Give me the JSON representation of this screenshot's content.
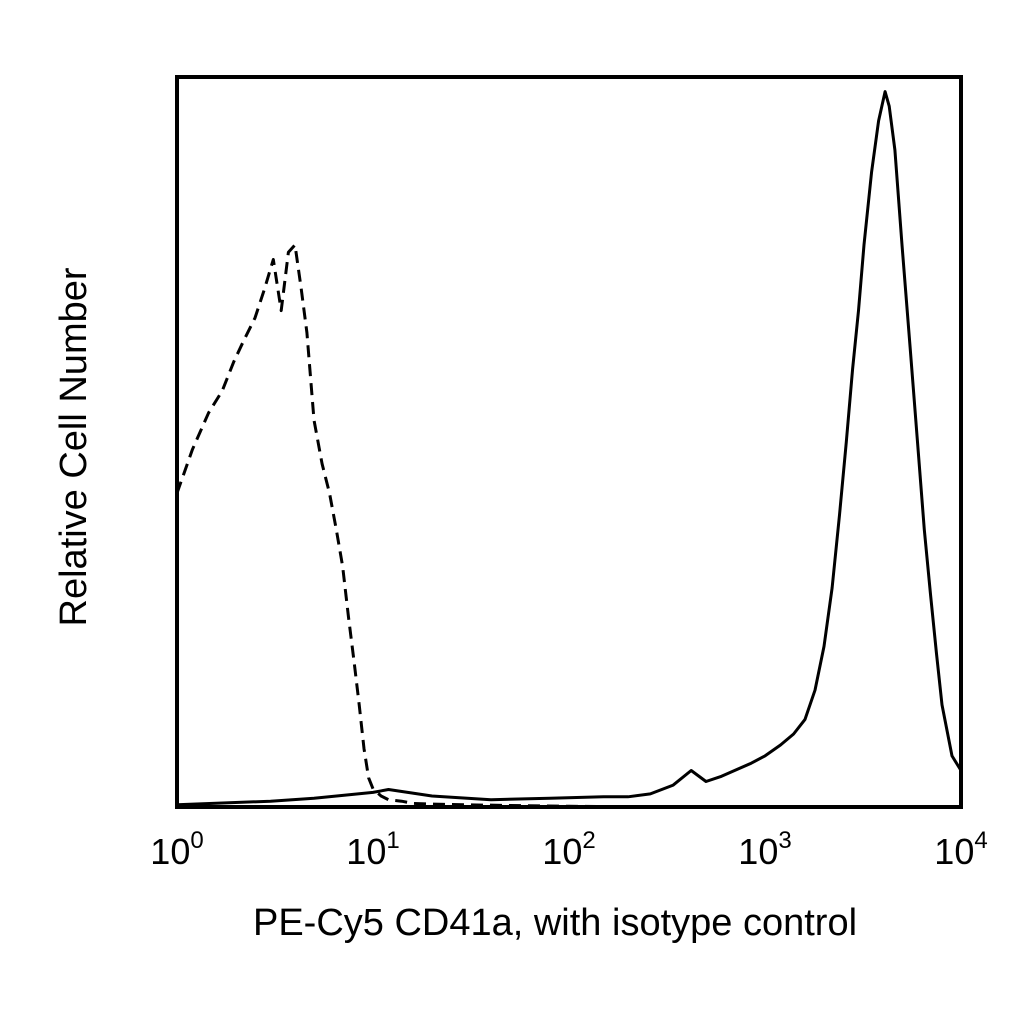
{
  "chart_data": {
    "type": "line",
    "title": "",
    "xlabel": "PE-Cy5 CD41a, with isotype control",
    "ylabel": "Relative Cell Number",
    "x_scale": "log",
    "xlim": [
      1,
      10000
    ],
    "ylim": [
      0,
      100
    ],
    "x_ticks": [
      {
        "value": 1,
        "base": "10",
        "exp": "0"
      },
      {
        "value": 10,
        "base": "10",
        "exp": "1"
      },
      {
        "value": 100,
        "base": "10",
        "exp": "2"
      },
      {
        "value": 1000,
        "base": "10",
        "exp": "3"
      },
      {
        "value": 10000,
        "base": "10",
        "exp": "4"
      }
    ],
    "y_tick_labels_shown": false,
    "grid": false,
    "legend": "none",
    "series": [
      {
        "style": "dashed",
        "color": "#000000",
        "points": [
          [
            1.0,
            43
          ],
          [
            1.2,
            49
          ],
          [
            1.45,
            54
          ],
          [
            1.7,
            57
          ],
          [
            1.95,
            61
          ],
          [
            2.2,
            64
          ],
          [
            2.5,
            67
          ],
          [
            2.8,
            71
          ],
          [
            3.1,
            75
          ],
          [
            3.4,
            68
          ],
          [
            3.7,
            76
          ],
          [
            4.0,
            77
          ],
          [
            4.3,
            71
          ],
          [
            4.6,
            65
          ],
          [
            5.0,
            53
          ],
          [
            5.5,
            47
          ],
          [
            6.0,
            43
          ],
          [
            6.5,
            38
          ],
          [
            7.0,
            33
          ],
          [
            7.5,
            26
          ],
          [
            8.0,
            20
          ],
          [
            8.5,
            14
          ],
          [
            9.0,
            8
          ],
          [
            9.5,
            4
          ],
          [
            10,
            2.5
          ],
          [
            11,
            1.5
          ],
          [
            12,
            1
          ],
          [
            14,
            0.8
          ],
          [
            16,
            0.5
          ],
          [
            20,
            0.4
          ],
          [
            30,
            0.3
          ],
          [
            50,
            0.2
          ],
          [
            100,
            0.1
          ],
          [
            200,
            0.05
          ],
          [
            400,
            0
          ]
        ]
      },
      {
        "style": "solid",
        "color": "#000000",
        "points": [
          [
            1.0,
            0.3
          ],
          [
            3,
            0.8
          ],
          [
            5,
            1.2
          ],
          [
            10,
            2
          ],
          [
            12,
            2.4
          ],
          [
            20,
            1.5
          ],
          [
            40,
            1
          ],
          [
            80,
            1.2
          ],
          [
            150,
            1.4
          ],
          [
            200,
            1.4
          ],
          [
            260,
            1.8
          ],
          [
            340,
            3
          ],
          [
            420,
            5
          ],
          [
            500,
            3.5
          ],
          [
            600,
            4.2
          ],
          [
            700,
            5
          ],
          [
            850,
            6
          ],
          [
            1000,
            7
          ],
          [
            1200,
            8.5
          ],
          [
            1400,
            10
          ],
          [
            1600,
            12
          ],
          [
            1800,
            16
          ],
          [
            2000,
            22
          ],
          [
            2200,
            30
          ],
          [
            2400,
            40
          ],
          [
            2600,
            50
          ],
          [
            2800,
            60
          ],
          [
            3000,
            68
          ],
          [
            3200,
            77
          ],
          [
            3500,
            87
          ],
          [
            3800,
            94
          ],
          [
            4100,
            98
          ],
          [
            4300,
            96
          ],
          [
            4600,
            90
          ],
          [
            5000,
            77
          ],
          [
            5500,
            63
          ],
          [
            6000,
            50
          ],
          [
            6500,
            38
          ],
          [
            7000,
            29
          ],
          [
            7500,
            21
          ],
          [
            8000,
            14
          ],
          [
            9000,
            7
          ],
          [
            10000,
            5
          ]
        ]
      }
    ]
  }
}
